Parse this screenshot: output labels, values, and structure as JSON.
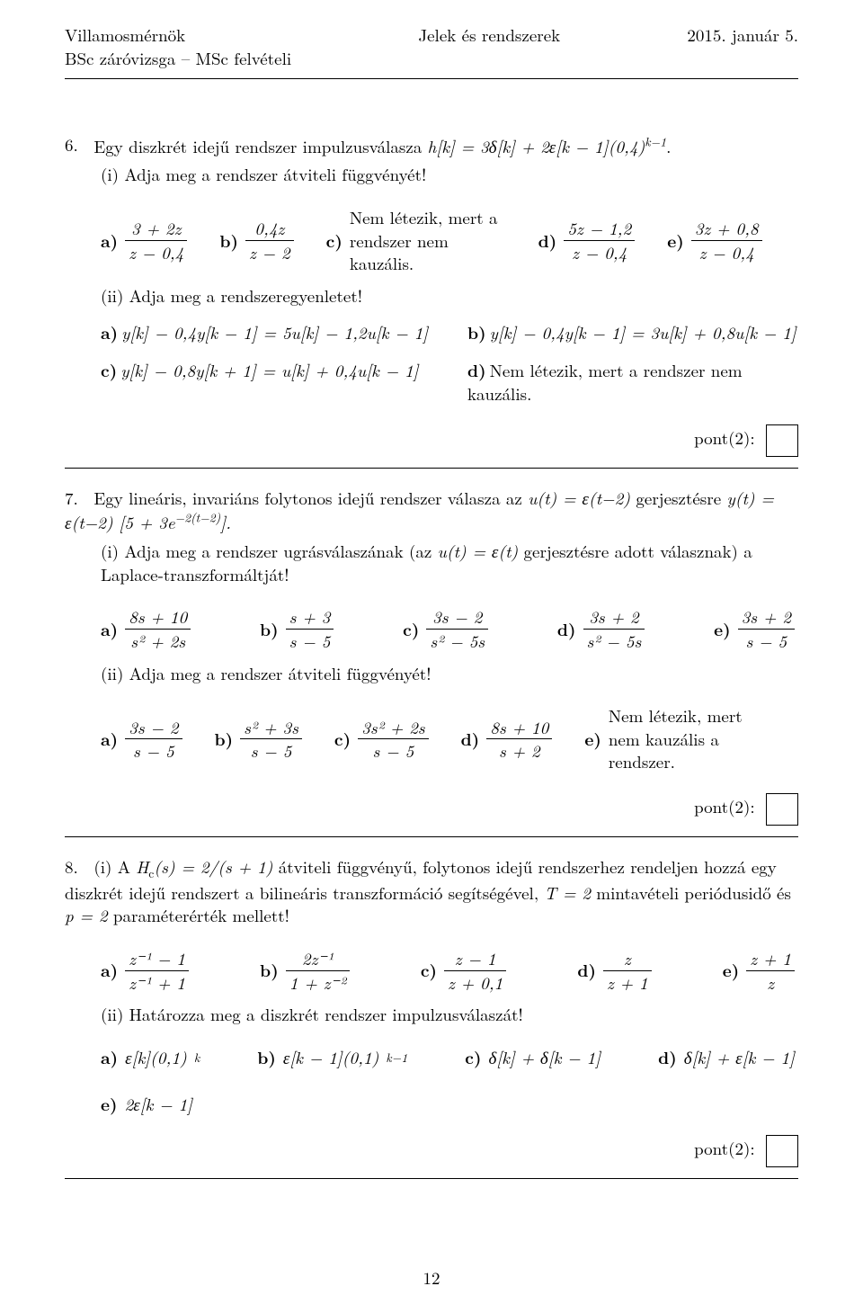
{
  "header": {
    "left1": "Villamosmérnök",
    "left2": "BSc záróvizsga – MSc felvételi",
    "center": "Jelek és rendszerek",
    "right": "2015. január 5."
  },
  "pageNumber": "12",
  "p6": {
    "num": "6.",
    "intro_a": "Egy diszkrét idejű rendszer impulzusválasza ",
    "intro_b": "h[k] = 3δ[k] + 2ε[k − 1](0,4)",
    "intro_exp": "k−1",
    "intro_c": ".",
    "sub1": "(i) Adja meg a rendszer átviteli függvényét!",
    "opts1": {
      "a_num": "3 + 2z",
      "a_den": "z − 0,4",
      "b_num": "0,4z",
      "b_den": "z − 2",
      "c_text": "Nem létezik, mert a rendszer nem kauzális.",
      "d_num": "5z − 1,2",
      "d_den": "z − 0,4",
      "e_num": "3z + 0,8",
      "e_den": "z − 0,4"
    },
    "sub2": "(ii) Adja meg a rendszeregyenletet!",
    "eqs": {
      "a": "y[k] − 0,4y[k − 1] = 5u[k] − 1,2u[k − 1]",
      "b": "y[k] − 0,4y[k − 1] = 3u[k] + 0,8u[k − 1]",
      "c": "y[k] − 0,8y[k + 1] = u[k] + 0,4u[k − 1]",
      "d": "Nem létezik, mert a rendszer nem kauzális."
    },
    "points": "pont(2):"
  },
  "p7": {
    "num": "7.",
    "intro_a": "Egy lineáris, invariáns folytonos idejű rendszer válasza az ",
    "intro_b": "u(t) = ε(t−2)",
    "intro_c": " gerjesztésre ",
    "intro_d": "y(t) = ε(t−2) [5 + 3e",
    "intro_exp": "−2(t−2)",
    "intro_e": "].",
    "sub1a": "(i) Adja meg a rendszer ugrásválaszának (az ",
    "sub1b": "u(t) = ε(t)",
    "sub1c": " gerjesztésre adott válasznak) a Laplace-transzfor­máltját!",
    "opts1": {
      "a_num": "8s + 10",
      "a_den": "s² + 2s",
      "b_num": "s + 3",
      "b_den": "s − 5",
      "c_num": "3s − 2",
      "c_den": "s² − 5s",
      "d_num": "3s + 2",
      "d_den": "s² − 5s",
      "e_num": "3s + 2",
      "e_den": "s − 5"
    },
    "sub2": "(ii) Adja meg a rendszer átviteli függvényét!",
    "opts2": {
      "a_num": "3s − 2",
      "a_den": "s − 5",
      "b_num": "s² + 3s",
      "b_den": "s − 5",
      "c_num": "3s² + 2s",
      "c_den": "s − 5",
      "d_num": "8s + 10",
      "d_den": "s + 2",
      "e_text": "Nem létezik, mert nem kauzális a rendszer."
    },
    "points": "pont(2):"
  },
  "p8": {
    "num": "8.",
    "intro_a": "(i) A ",
    "intro_b": "H_c(s) = 2/(s + 1)",
    "intro_c": " átviteli függvényű, folytonos idejű rendszerhez rendeljen hozzá egy diszkrét idejű rendszert a bilineáris transzformáció segítségével, ",
    "intro_d": "T = 2",
    "intro_e": " mintavételi periódusidő és ",
    "intro_f": "p = 2",
    "intro_g": " paraméterérték mellett!",
    "opts1": {
      "a_num": "z⁻¹ − 1",
      "a_den": "z⁻¹ + 1",
      "b_num": "2z⁻¹",
      "b_den": "1 + z⁻²",
      "c_num": "z − 1",
      "c_den": "z + 0,1",
      "d_num": "z",
      "d_den": "z + 1",
      "e_num": "z + 1",
      "e_den": "z"
    },
    "sub2": "(ii) Határozza meg a diszkrét rendszer impulzusválaszát!",
    "opts2": {
      "a": "ε[k](0,1)",
      "a_exp": "k",
      "b": "ε[k − 1](0,1)",
      "b_exp": "k−1",
      "c": "δ[k] + δ[k − 1]",
      "d": "δ[k] + ε[k − 1]",
      "e": "2ε[k − 1]"
    },
    "points": "pont(2):"
  },
  "labels": {
    "a": "a)",
    "b": "b)",
    "c": "c)",
    "d": "d)",
    "e": "e)"
  }
}
